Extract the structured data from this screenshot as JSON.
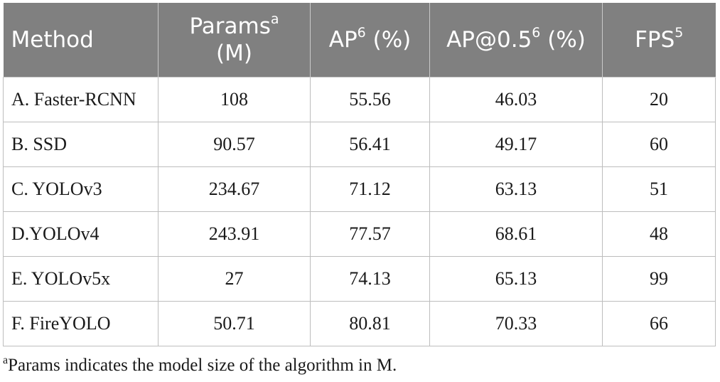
{
  "table": {
    "headers": [
      {
        "label": "Method",
        "sup": "",
        "line2": ""
      },
      {
        "label": "Params",
        "sup": "a",
        "line2": "(M)"
      },
      {
        "label": "AP",
        "sup": "6",
        "suffix": " (%)"
      },
      {
        "label": "AP@0.5",
        "sup": "6",
        "suffix": " (%)"
      },
      {
        "label": "FPS",
        "sup": "5",
        "suffix": ""
      }
    ],
    "rows": [
      [
        "A. Faster-RCNN",
        "108",
        "55.56",
        "46.03",
        "20"
      ],
      [
        "B. SSD",
        "90.57",
        "56.41",
        "49.17",
        "60"
      ],
      [
        "C. YOLOv3",
        "234.67",
        "71.12",
        "63.13",
        "51"
      ],
      [
        "D.YOLOv4",
        "243.91",
        "77.57",
        "68.61",
        "48"
      ],
      [
        "E. YOLOv5x",
        "27",
        "74.13",
        "65.13",
        "99"
      ],
      [
        "F. FireYOLO",
        "50.71",
        "80.81",
        "70.33",
        "66"
      ]
    ]
  },
  "footnote": {
    "marker": "a",
    "text": "Params indicates the model size of the algorithm in M."
  }
}
